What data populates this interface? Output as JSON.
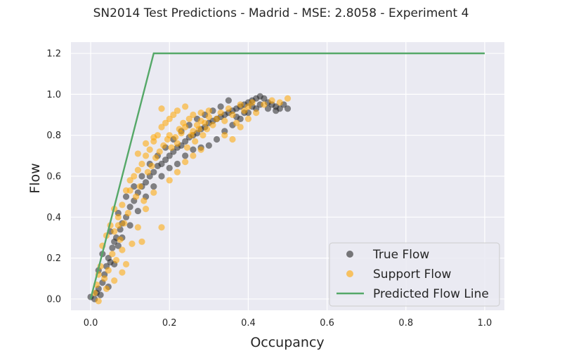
{
  "chart_data": {
    "type": "scatter",
    "title": "SN2014 Test Predictions - Madrid - MSE: 2.8058 - Experiment 4",
    "xlabel": "Occupancy",
    "ylabel": "Flow",
    "xlim": [
      -0.05,
      1.05
    ],
    "ylim": [
      -0.055,
      1.255
    ],
    "xticks": [
      "0.0",
      "0.2",
      "0.4",
      "0.6",
      "0.8",
      "1.0"
    ],
    "yticks": [
      "0.0",
      "0.2",
      "0.4",
      "0.6",
      "0.8",
      "1.0",
      "1.2"
    ],
    "grid": true,
    "legend_position": "lower-right",
    "series": [
      {
        "name": "True Flow",
        "kind": "scatter",
        "color": "#262626",
        "points": [
          [
            0.0,
            0.01
          ],
          [
            0.01,
            0.0
          ],
          [
            0.015,
            0.03
          ],
          [
            0.02,
            0.05
          ],
          [
            0.025,
            0.02
          ],
          [
            0.03,
            0.08
          ],
          [
            0.035,
            0.12
          ],
          [
            0.04,
            0.16
          ],
          [
            0.045,
            0.2
          ],
          [
            0.05,
            0.18
          ],
          [
            0.055,
            0.25
          ],
          [
            0.06,
            0.28
          ],
          [
            0.065,
            0.3
          ],
          [
            0.07,
            0.26
          ],
          [
            0.075,
            0.34
          ],
          [
            0.08,
            0.37
          ],
          [
            0.09,
            0.4
          ],
          [
            0.1,
            0.45
          ],
          [
            0.11,
            0.48
          ],
          [
            0.12,
            0.52
          ],
          [
            0.13,
            0.55
          ],
          [
            0.14,
            0.57
          ],
          [
            0.15,
            0.6
          ],
          [
            0.16,
            0.62
          ],
          [
            0.17,
            0.65
          ],
          [
            0.18,
            0.66
          ],
          [
            0.19,
            0.68
          ],
          [
            0.2,
            0.7
          ],
          [
            0.21,
            0.72
          ],
          [
            0.22,
            0.74
          ],
          [
            0.23,
            0.75
          ],
          [
            0.24,
            0.77
          ],
          [
            0.25,
            0.79
          ],
          [
            0.26,
            0.8
          ],
          [
            0.27,
            0.81
          ],
          [
            0.28,
            0.83
          ],
          [
            0.29,
            0.84
          ],
          [
            0.3,
            0.86
          ],
          [
            0.31,
            0.87
          ],
          [
            0.32,
            0.88
          ],
          [
            0.33,
            0.89
          ],
          [
            0.34,
            0.9
          ],
          [
            0.35,
            0.91
          ],
          [
            0.36,
            0.92
          ],
          [
            0.37,
            0.93
          ],
          [
            0.38,
            0.94
          ],
          [
            0.39,
            0.95
          ],
          [
            0.4,
            0.96
          ],
          [
            0.41,
            0.97
          ],
          [
            0.42,
            0.98
          ],
          [
            0.43,
            0.99
          ],
          [
            0.44,
            0.98
          ],
          [
            0.45,
            0.96
          ],
          [
            0.46,
            0.95
          ],
          [
            0.47,
            0.94
          ],
          [
            0.48,
            0.93
          ],
          [
            0.49,
            0.95
          ],
          [
            0.5,
            0.93
          ],
          [
            0.38,
            0.88
          ],
          [
            0.36,
            0.85
          ],
          [
            0.34,
            0.82
          ],
          [
            0.32,
            0.78
          ],
          [
            0.3,
            0.75
          ],
          [
            0.28,
            0.74
          ],
          [
            0.26,
            0.73
          ],
          [
            0.24,
            0.7
          ],
          [
            0.22,
            0.66
          ],
          [
            0.4,
            0.91
          ],
          [
            0.42,
            0.93
          ],
          [
            0.35,
            0.97
          ],
          [
            0.33,
            0.94
          ],
          [
            0.31,
            0.92
          ],
          [
            0.29,
            0.9
          ],
          [
            0.27,
            0.88
          ],
          [
            0.25,
            0.85
          ],
          [
            0.23,
            0.82
          ],
          [
            0.21,
            0.78
          ],
          [
            0.19,
            0.74
          ],
          [
            0.17,
            0.7
          ],
          [
            0.15,
            0.66
          ],
          [
            0.13,
            0.6
          ],
          [
            0.11,
            0.55
          ],
          [
            0.09,
            0.5
          ],
          [
            0.07,
            0.42
          ],
          [
            0.05,
            0.33
          ],
          [
            0.03,
            0.22
          ],
          [
            0.02,
            0.14
          ],
          [
            0.045,
            0.06
          ],
          [
            0.06,
            0.17
          ],
          [
            0.08,
            0.3
          ],
          [
            0.1,
            0.36
          ],
          [
            0.12,
            0.43
          ],
          [
            0.14,
            0.5
          ],
          [
            0.16,
            0.55
          ],
          [
            0.18,
            0.6
          ],
          [
            0.2,
            0.64
          ],
          [
            0.37,
            0.89
          ],
          [
            0.39,
            0.91
          ],
          [
            0.41,
            0.94
          ],
          [
            0.43,
            0.95
          ],
          [
            0.45,
            0.93
          ],
          [
            0.47,
            0.92
          ]
        ]
      },
      {
        "name": "Support Flow",
        "kind": "scatter",
        "color": "#FFA500",
        "points": [
          [
            0.01,
            0.03
          ],
          [
            0.015,
            0.07
          ],
          [
            0.02,
            0.12
          ],
          [
            0.025,
            0.16
          ],
          [
            0.03,
            0.26
          ],
          [
            0.035,
            0.1
          ],
          [
            0.04,
            0.31
          ],
          [
            0.045,
            0.14
          ],
          [
            0.05,
            0.36
          ],
          [
            0.055,
            0.22
          ],
          [
            0.06,
            0.33
          ],
          [
            0.065,
            0.19
          ],
          [
            0.07,
            0.4
          ],
          [
            0.075,
            0.29
          ],
          [
            0.08,
            0.46
          ],
          [
            0.085,
            0.37
          ],
          [
            0.09,
            0.53
          ],
          [
            0.095,
            0.42
          ],
          [
            0.1,
            0.58
          ],
          [
            0.105,
            0.27
          ],
          [
            0.11,
            0.6
          ],
          [
            0.115,
            0.5
          ],
          [
            0.12,
            0.63
          ],
          [
            0.125,
            0.55
          ],
          [
            0.13,
            0.66
          ],
          [
            0.135,
            0.48
          ],
          [
            0.14,
            0.7
          ],
          [
            0.145,
            0.62
          ],
          [
            0.15,
            0.73
          ],
          [
            0.155,
            0.65
          ],
          [
            0.16,
            0.77
          ],
          [
            0.165,
            0.69
          ],
          [
            0.17,
            0.8
          ],
          [
            0.175,
            0.72
          ],
          [
            0.18,
            0.84
          ],
          [
            0.185,
            0.75
          ],
          [
            0.19,
            0.86
          ],
          [
            0.195,
            0.78
          ],
          [
            0.2,
            0.88
          ],
          [
            0.205,
            0.74
          ],
          [
            0.21,
            0.9
          ],
          [
            0.215,
            0.79
          ],
          [
            0.22,
            0.76
          ],
          [
            0.225,
            0.83
          ],
          [
            0.23,
            0.81
          ],
          [
            0.235,
            0.86
          ],
          [
            0.24,
            0.84
          ],
          [
            0.245,
            0.74
          ],
          [
            0.25,
            0.88
          ],
          [
            0.255,
            0.8
          ],
          [
            0.26,
            0.82
          ],
          [
            0.265,
            0.77
          ],
          [
            0.27,
            0.85
          ],
          [
            0.275,
            0.83
          ],
          [
            0.28,
            0.87
          ],
          [
            0.285,
            0.8
          ],
          [
            0.29,
            0.86
          ],
          [
            0.295,
            0.83
          ],
          [
            0.3,
            0.89
          ],
          [
            0.31,
            0.85
          ],
          [
            0.32,
            0.88
          ],
          [
            0.33,
            0.91
          ],
          [
            0.34,
            0.87
          ],
          [
            0.35,
            0.93
          ],
          [
            0.36,
            0.9
          ],
          [
            0.37,
            0.86
          ],
          [
            0.38,
            0.95
          ],
          [
            0.39,
            0.92
          ],
          [
            0.4,
            0.94
          ],
          [
            0.41,
            0.96
          ],
          [
            0.42,
            0.91
          ],
          [
            0.44,
            0.95
          ],
          [
            0.46,
            0.97
          ],
          [
            0.48,
            0.96
          ],
          [
            0.5,
            0.98
          ],
          [
            0.02,
            -0.01
          ],
          [
            0.04,
            0.05
          ],
          [
            0.06,
            0.09
          ],
          [
            0.08,
            0.13
          ],
          [
            0.12,
            0.35
          ],
          [
            0.14,
            0.44
          ],
          [
            0.16,
            0.52
          ],
          [
            0.18,
            0.35
          ],
          [
            0.2,
            0.58
          ],
          [
            0.22,
            0.62
          ],
          [
            0.24,
            0.67
          ],
          [
            0.26,
            0.7
          ],
          [
            0.28,
            0.73
          ],
          [
            0.12,
            0.71
          ],
          [
            0.14,
            0.76
          ],
          [
            0.16,
            0.79
          ],
          [
            0.18,
            0.93
          ],
          [
            0.2,
            0.8
          ],
          [
            0.22,
            0.92
          ],
          [
            0.24,
            0.94
          ],
          [
            0.26,
            0.9
          ],
          [
            0.28,
            0.91
          ],
          [
            0.3,
            0.92
          ],
          [
            0.34,
            0.8
          ],
          [
            0.36,
            0.78
          ],
          [
            0.38,
            0.84
          ],
          [
            0.4,
            0.88
          ],
          [
            0.1,
            0.53
          ],
          [
            0.08,
            0.24
          ],
          [
            0.06,
            0.44
          ],
          [
            0.13,
            0.28
          ],
          [
            0.09,
            0.17
          ],
          [
            0.07,
            0.36
          ]
        ]
      },
      {
        "name": "Predicted Flow Line",
        "kind": "line",
        "color": "#55A868",
        "points": [
          [
            0.0,
            0.0
          ],
          [
            0.16,
            1.2
          ],
          [
            1.0,
            1.2
          ]
        ]
      }
    ]
  }
}
